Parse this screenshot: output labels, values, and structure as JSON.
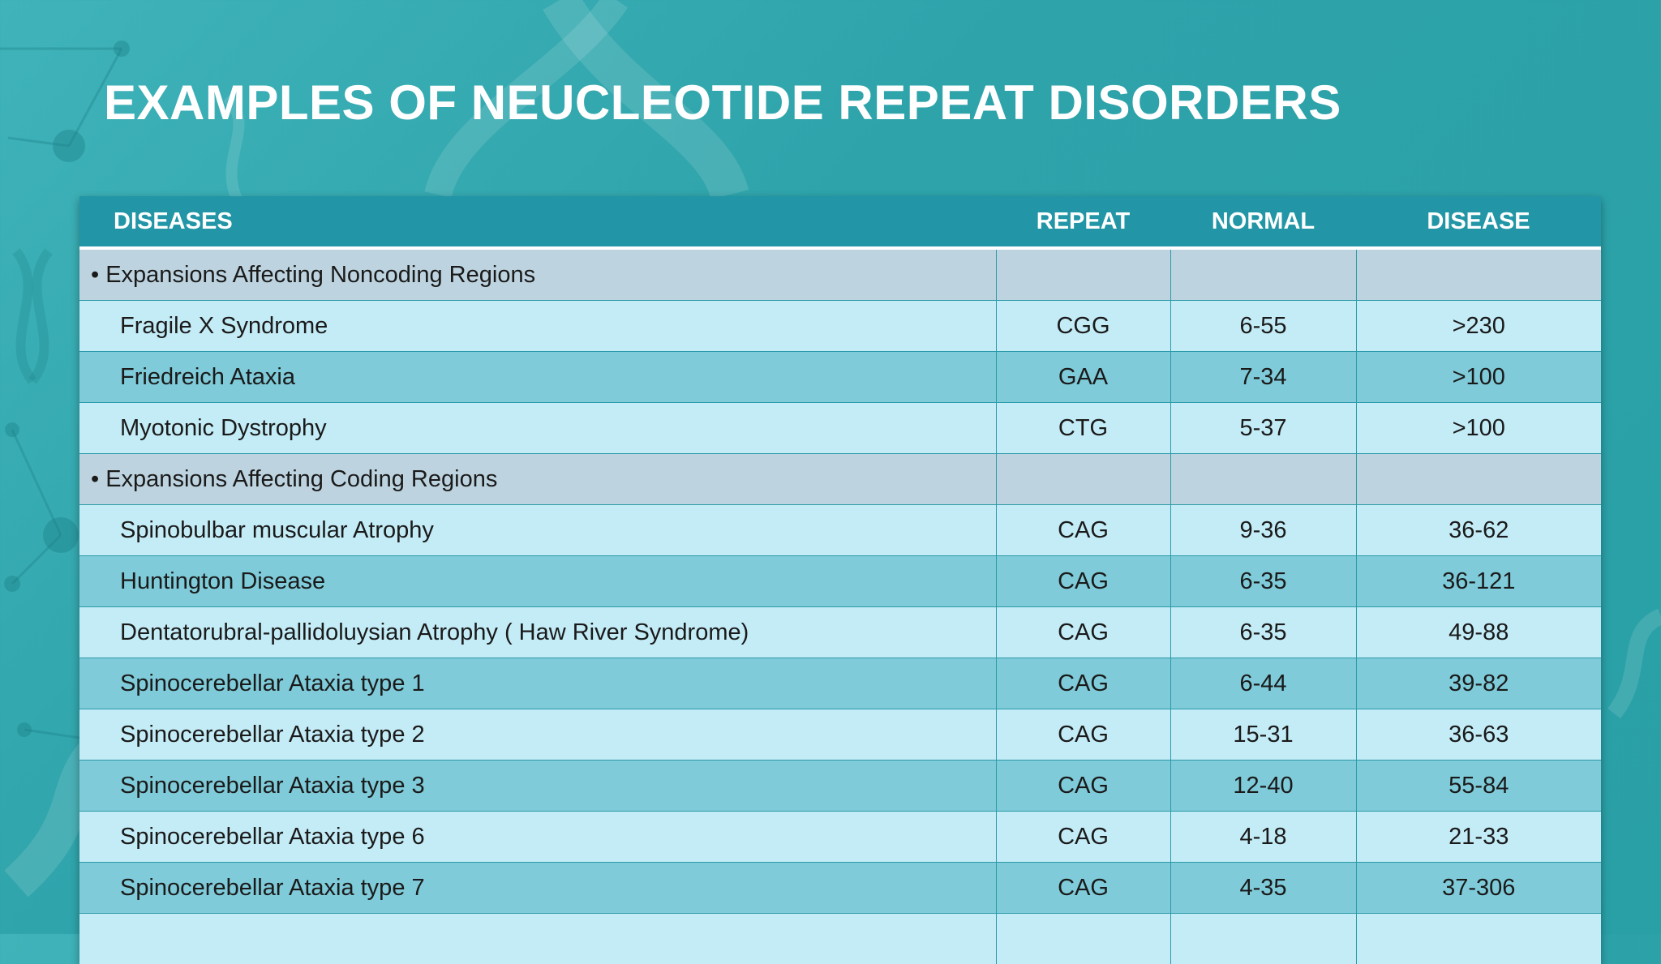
{
  "title": "EXAMPLES OF NEUCLEOTIDE REPEAT DISORDERS",
  "table": {
    "headers": [
      "DISEASES",
      "REPEAT",
      "NORMAL",
      "DISEASE"
    ],
    "groups": [
      {
        "label": "• Expansions Affecting Noncoding  Regions",
        "rows": [
          {
            "name": "Fragile X Syndrome",
            "repeat": "CGG",
            "normal": "6-55",
            "disease": ">230"
          },
          {
            "name": "Friedreich Ataxia",
            "repeat": "GAA",
            "normal": "7-34",
            "disease": ">100"
          },
          {
            "name": "Myotonic Dystrophy",
            "repeat": "CTG",
            "normal": "5-37",
            "disease": ">100"
          }
        ]
      },
      {
        "label": "• Expansions Affecting Coding Regions",
        "rows": [
          {
            "name": "Spinobulbar muscular Atrophy",
            "repeat": "CAG",
            "normal": "9-36",
            "disease": "36-62"
          },
          {
            "name": "Huntington Disease",
            "repeat": "CAG",
            "normal": "6-35",
            "disease": "36-121"
          },
          {
            "name": "Dentatorubral-pallidoluysian Atrophy ( Haw River Syndrome)",
            "repeat": "CAG",
            "normal": "6-35",
            "disease": "49-88"
          },
          {
            "name": "Spinocerebellar Ataxia type 1",
            "repeat": "CAG",
            "normal": "6-44",
            "disease": "39-82"
          },
          {
            "name": "Spinocerebellar Ataxia type 2",
            "repeat": "CAG",
            "normal": "15-31",
            "disease": "36-63"
          },
          {
            "name": "Spinocerebellar Ataxia type 3",
            "repeat": "CAG",
            "normal": "12-40",
            "disease": "55-84"
          },
          {
            "name": "Spinocerebellar Ataxia type 6",
            "repeat": "CAG",
            "normal": "4-18",
            "disease": "21-33"
          },
          {
            "name": "Spinocerebellar Ataxia type 7",
            "repeat": "CAG",
            "normal": "4-35",
            "disease": "37-306"
          }
        ]
      }
    ]
  },
  "colors": {
    "background": "#2ea3a9",
    "header": "#2296a6",
    "group_row": "#bdd4e0",
    "row_light": "#c4ecf7",
    "row_dark": "#7fcbd9"
  }
}
